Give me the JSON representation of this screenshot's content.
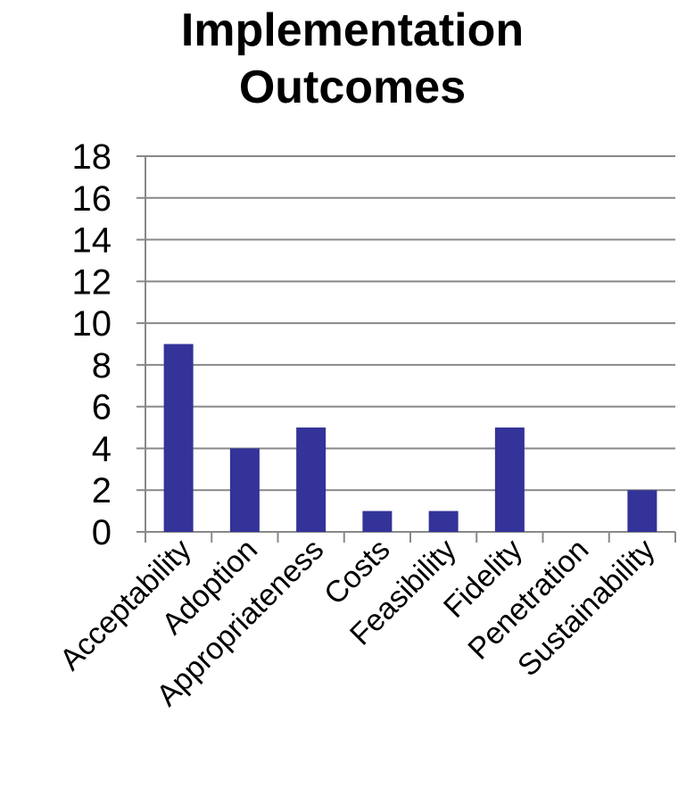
{
  "chart_data": {
    "type": "bar",
    "title_lines": [
      "Implementation",
      "Outcomes"
    ],
    "categories": [
      "Acceptability",
      "Adoption",
      "Appropriateness",
      "Costs",
      "Feasibility",
      "Fidelity",
      "Penetration",
      "Sustainability"
    ],
    "values": [
      9,
      4,
      5,
      1,
      1,
      5,
      0,
      2
    ],
    "ylim": [
      0,
      18
    ],
    "yticks": [
      0,
      2,
      4,
      6,
      8,
      10,
      12,
      14,
      16,
      18
    ],
    "grid": true,
    "legend": "none",
    "bar_color": "#333399",
    "grid_color": "#888888"
  }
}
